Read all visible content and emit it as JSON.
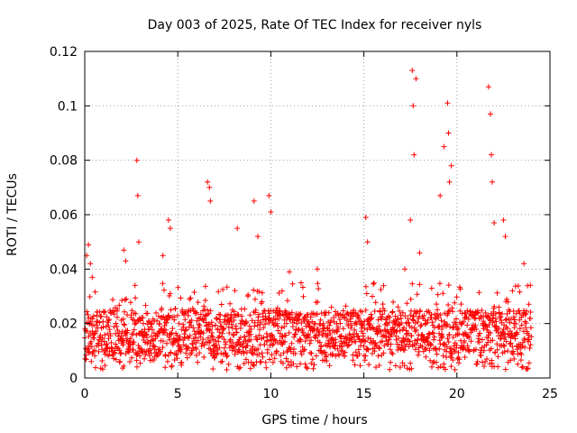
{
  "chart_data": {
    "type": "scatter",
    "title": "Day 003 of 2025, Rate Of TEC Index for receiver nyls",
    "xlabel": "GPS time / hours",
    "ylabel": "ROTI / TECUs",
    "xlim": [
      0,
      25
    ],
    "ylim": [
      0,
      0.12
    ],
    "grid": true,
    "marker": "plus",
    "color": "#ff0000",
    "xticks": [
      0,
      5,
      10,
      15,
      20,
      25
    ],
    "xtick_labels": [
      "0",
      "5",
      "10",
      "15",
      "20",
      "25"
    ],
    "yticks": [
      0,
      0.02,
      0.04,
      0.06,
      0.08,
      0.1,
      0.12
    ],
    "ytick_labels": [
      "0",
      "0.02",
      "0.04",
      "0.06",
      "0.08",
      "0.1",
      "0.12"
    ],
    "baseline": {
      "x_range": [
        0,
        24
      ],
      "typical_band": [
        0.008,
        0.025
      ],
      "min": 0.003,
      "max": 0.035
    },
    "series": [
      {
        "name": "ROTI",
        "x": [
          0.1,
          0.2,
          0.3,
          0.4,
          2.1,
          2.2,
          2.8,
          2.85,
          2.9,
          4.2,
          4.5,
          4.6,
          6.6,
          6.7,
          6.75,
          8.2,
          9.1,
          9.3,
          9.9,
          10.0,
          11.0,
          12.5,
          15.1,
          15.2,
          17.2,
          17.5,
          17.6,
          17.65,
          17.7,
          17.8,
          18.0,
          19.1,
          19.3,
          19.5,
          19.55,
          19.6,
          19.7,
          21.7,
          21.8,
          21.85,
          21.9,
          22.0,
          22.5,
          22.6,
          23.6
        ],
        "y": [
          0.045,
          0.049,
          0.042,
          0.037,
          0.047,
          0.043,
          0.08,
          0.067,
          0.05,
          0.045,
          0.058,
          0.055,
          0.072,
          0.07,
          0.065,
          0.055,
          0.065,
          0.052,
          0.067,
          0.061,
          0.039,
          0.04,
          0.059,
          0.05,
          0.04,
          0.058,
          0.113,
          0.1,
          0.082,
          0.11,
          0.046,
          0.067,
          0.085,
          0.101,
          0.09,
          0.072,
          0.078,
          0.107,
          0.097,
          0.082,
          0.072,
          0.057,
          0.058,
          0.052,
          0.042
        ]
      }
    ]
  }
}
